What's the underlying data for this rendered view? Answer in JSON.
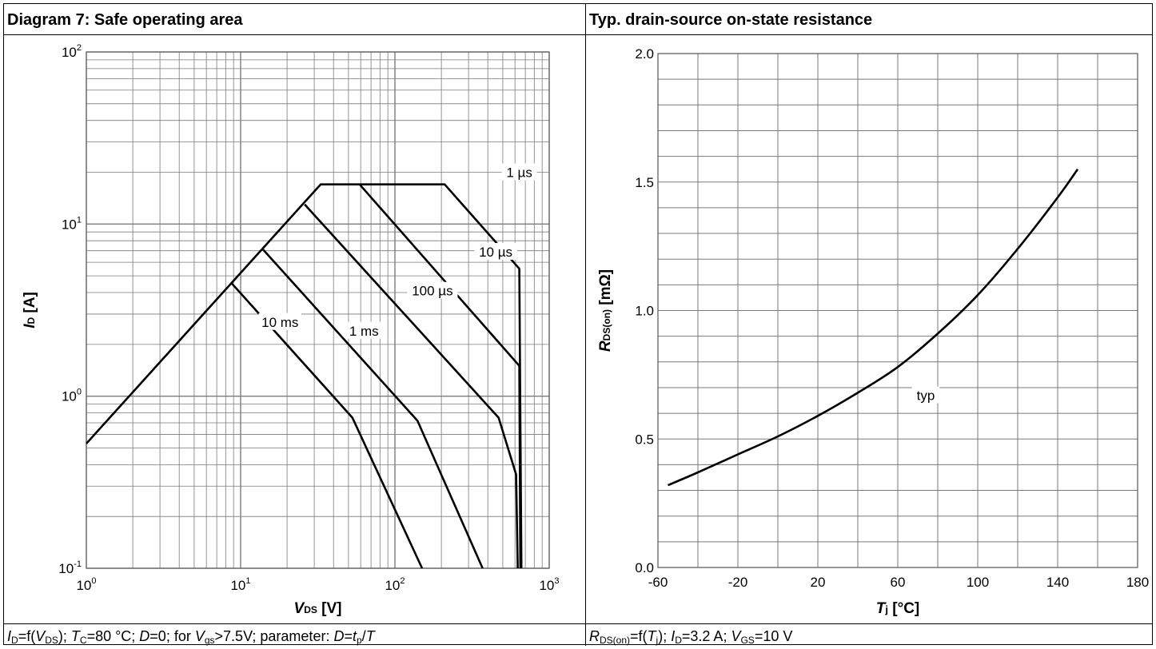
{
  "panels": {
    "left": {
      "title": "Diagram 7: Safe operating area",
      "caption": [
        {
          "t": "I",
          "i": true
        },
        {
          "t": "D",
          "sub": true
        },
        {
          "t": "=f("
        },
        {
          "t": "V",
          "i": true
        },
        {
          "t": "DS",
          "sub": true
        },
        {
          "t": "); "
        },
        {
          "t": "T",
          "i": true
        },
        {
          "t": "C",
          "sub": true
        },
        {
          "t": "=80 °C; "
        },
        {
          "t": "D",
          "i": true
        },
        {
          "t": "=0; for "
        },
        {
          "t": "V",
          "i": true
        },
        {
          "t": "gs",
          "sub": true
        },
        {
          "t": ">7.5V; parameter: "
        },
        {
          "t": "D",
          "i": true
        },
        {
          "t": "="
        },
        {
          "t": "t",
          "i": true
        },
        {
          "t": "p",
          "sub": true
        },
        {
          "t": "/"
        },
        {
          "t": "T",
          "i": true
        }
      ]
    },
    "right": {
      "title": "Typ. drain-source on-state resistance",
      "caption": [
        {
          "t": "R",
          "i": true
        },
        {
          "t": "DS(on)",
          "sub": true
        },
        {
          "t": "=f("
        },
        {
          "t": "T",
          "i": true
        },
        {
          "t": "j",
          "sub": true
        },
        {
          "t": "); "
        },
        {
          "t": "I",
          "i": true
        },
        {
          "t": "D",
          "sub": true
        },
        {
          "t": "=3.2 A; "
        },
        {
          "t": "V",
          "i": true
        },
        {
          "t": "GS",
          "sub": true
        },
        {
          "t": "=10 V"
        }
      ]
    }
  },
  "chart_data": [
    {
      "type": "line",
      "xscale": "log",
      "yscale": "log",
      "xlim": [
        1,
        1000
      ],
      "ylim": [
        0.1,
        100
      ],
      "grid": true,
      "xlabel": {
        "main": "V",
        "sub": "DS",
        "unit": " [V]"
      },
      "ylabel": {
        "main": "I",
        "sub": "D",
        "unit": " [A]"
      },
      "x_ticks": [
        {
          "base": "10",
          "exp": "0"
        },
        {
          "base": "10",
          "exp": "1"
        },
        {
          "base": "10",
          "exp": "2"
        },
        {
          "base": "10",
          "exp": "3"
        }
      ],
      "y_ticks": [
        {
          "base": "10",
          "exp": "-1"
        },
        {
          "base": "10",
          "exp": "0"
        },
        {
          "base": "10",
          "exp": "1"
        },
        {
          "base": "10",
          "exp": "2"
        }
      ],
      "series": [
        {
          "name": "1 µs",
          "label_at": [
            640,
            20
          ],
          "points": [
            [
              1,
              0.53
            ],
            [
              33,
              17
            ],
            [
              210,
              17
            ],
            [
              640,
              5.5
            ],
            [
              660,
              0.1
            ]
          ]
        },
        {
          "name": "10 µs",
          "label_at": [
            450,
            6.9
          ],
          "points": [
            [
              59,
              17
            ],
            [
              640,
              1.5
            ],
            [
              650,
              0.1
            ]
          ]
        },
        {
          "name": "100 µs",
          "label_at": [
            175,
            4.1
          ],
          "points": [
            [
              26,
              13
            ],
            [
              470,
              0.75
            ],
            [
              610,
              0.35
            ],
            [
              625,
              0.1
            ]
          ]
        },
        {
          "name": "1 ms",
          "label_at": [
            63,
            2.4
          ],
          "points": [
            [
              14,
              7.1
            ],
            [
              140,
              0.72
            ],
            [
              370,
              0.1
            ]
          ]
        },
        {
          "name": "10 ms",
          "label_at": [
            18,
            2.7
          ],
          "points": [
            [
              8.8,
              4.5
            ],
            [
              53,
              0.75
            ],
            [
              150,
              0.1
            ]
          ]
        }
      ]
    },
    {
      "type": "line",
      "xlim": [
        -60,
        180
      ],
      "ylim": [
        0.0,
        2.0
      ],
      "grid": true,
      "xlabel": {
        "main": "T",
        "sub": "j",
        "unit": " [°C]"
      },
      "ylabel": {
        "main": "R",
        "sub": "DS(on)",
        "unit": " [mΩ]"
      },
      "x_ticks": [
        "-60",
        "-20",
        "20",
        "60",
        "100",
        "140",
        "180"
      ],
      "y_ticks": [
        "0.0",
        "0.5",
        "1.0",
        "1.5",
        "2.0"
      ],
      "series": [
        {
          "name": "typ",
          "label_at": [
            74,
            0.67
          ],
          "points": [
            [
              -55,
              0.32
            ],
            [
              -40,
              0.37
            ],
            [
              -20,
              0.44
            ],
            [
              0,
              0.51
            ],
            [
              20,
              0.59
            ],
            [
              40,
              0.68
            ],
            [
              60,
              0.78
            ],
            [
              80,
              0.91
            ],
            [
              100,
              1.06
            ],
            [
              120,
              1.24
            ],
            [
              140,
              1.44
            ],
            [
              150,
              1.55
            ]
          ]
        }
      ]
    }
  ]
}
